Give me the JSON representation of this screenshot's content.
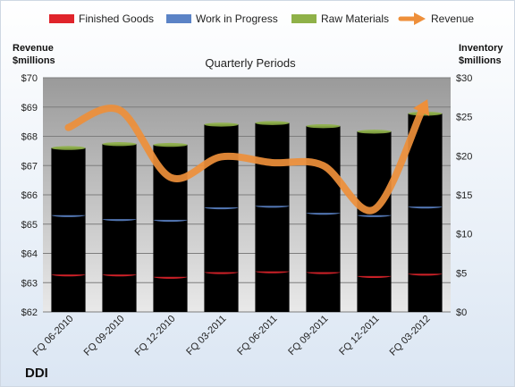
{
  "chart_data": {
    "type": "bar",
    "title": "Quarterly Periods",
    "brand": "DDI",
    "left_axis_title_line1": "Revenue",
    "left_axis_title_line2": "$millions",
    "right_axis_title_line1": "Inventory",
    "right_axis_title_line2": "$millions",
    "categories": [
      "FQ 06-2010",
      "FQ 09-2010",
      "FQ 12-2010",
      "FQ 03-2011",
      "FQ 06-2011",
      "FQ 09-2011",
      "FQ 12-2011",
      "FQ 03-2012"
    ],
    "left_axis": {
      "min": 62,
      "max": 70,
      "step": 1,
      "prefix": "$"
    },
    "right_axis": {
      "min": 0,
      "max": 30,
      "step": 5,
      "prefix": "$"
    },
    "stacked_series": [
      {
        "name": "Finished Goods",
        "axis": "right",
        "color": "#e0242b",
        "values": [
          4.8,
          4.8,
          4.5,
          5.1,
          5.2,
          5.1,
          4.6,
          4.9
        ]
      },
      {
        "name": "Work in Progress",
        "axis": "right",
        "color": "#5b83c6",
        "values": [
          7.6,
          7.1,
          7.3,
          8.3,
          8.4,
          7.6,
          7.8,
          8.6
        ]
      },
      {
        "name": "Raw Materials",
        "axis": "right",
        "color": "#8fb148",
        "values": [
          8.6,
          9.6,
          9.6,
          10.6,
          10.6,
          11.1,
          10.7,
          11.9
        ]
      }
    ],
    "line_series": {
      "name": "Revenue",
      "axis": "left",
      "color": "#ee8f3a",
      "values": [
        68.3,
        68.9,
        66.6,
        67.3,
        67.1,
        67.0,
        65.5,
        69.1
      ]
    },
    "legend_position": "top",
    "grid": true
  }
}
